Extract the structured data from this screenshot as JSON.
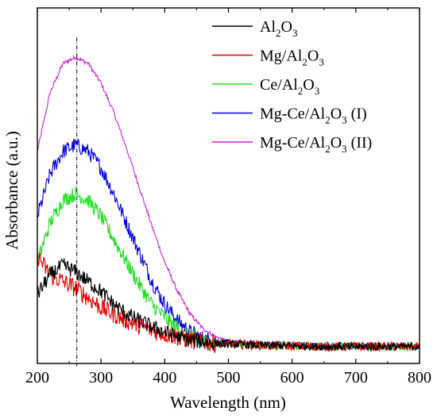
{
  "chart_data": {
    "type": "line",
    "xlabel": "Wavelength (nm)",
    "ylabel": "Absorbance (a.u.)",
    "xlim": [
      200,
      800
    ],
    "ylim": [
      0,
      1
    ],
    "x_ticks": [
      200,
      300,
      400,
      500,
      600,
      700,
      800
    ],
    "y_ticks_labeled": false,
    "grid": false,
    "legend_position": "top-right",
    "reference_line": {
      "x": 262,
      "style": "dash-dot"
    },
    "series": [
      {
        "name": "Al2O3",
        "legend": [
          "Al",
          "2",
          "O",
          "3",
          ""
        ],
        "color": "#000000",
        "x": [
          200,
          220,
          240,
          260,
          280,
          300,
          320,
          340,
          360,
          380,
          400,
          420,
          440,
          460,
          480,
          500,
          550,
          600,
          650,
          700,
          750,
          800
        ],
        "y": [
          0.18,
          0.24,
          0.27,
          0.25,
          0.22,
          0.19,
          0.15,
          0.12,
          0.1,
          0.08,
          0.065,
          0.05,
          0.04,
          0.035,
          0.03,
          0.028,
          0.024,
          0.022,
          0.02,
          0.02,
          0.02,
          0.02
        ],
        "noise": 0.015
      },
      {
        "name": "Mg/Al2O3",
        "legend": [
          "Mg/Al",
          "2",
          "O",
          "3",
          ""
        ],
        "color": "#e00000",
        "x": [
          200,
          220,
          240,
          260,
          280,
          300,
          320,
          340,
          360,
          380,
          400,
          420,
          440,
          460,
          480,
          500,
          550,
          600,
          650,
          700,
          750,
          800
        ],
        "y": [
          0.3,
          0.24,
          0.22,
          0.2,
          0.17,
          0.14,
          0.12,
          0.1,
          0.085,
          0.07,
          0.06,
          0.05,
          0.04,
          0.035,
          0.03,
          0.028,
          0.024,
          0.022,
          0.02,
          0.02,
          0.02,
          0.02
        ],
        "noise": 0.018
      },
      {
        "name": "Ce/Al2O3",
        "legend": [
          "Ce/Al",
          "2",
          "O",
          "3",
          ""
        ],
        "color": "#22dd22",
        "x": [
          200,
          220,
          240,
          260,
          280,
          300,
          320,
          340,
          360,
          380,
          400,
          420,
          440,
          460,
          480,
          500,
          550,
          600,
          650,
          700,
          750,
          800
        ],
        "y": [
          0.28,
          0.4,
          0.47,
          0.49,
          0.47,
          0.42,
          0.35,
          0.28,
          0.21,
          0.15,
          0.11,
          0.075,
          0.05,
          0.035,
          0.03,
          0.028,
          0.024,
          0.022,
          0.02,
          0.02,
          0.02,
          0.02
        ],
        "noise": 0.015
      },
      {
        "name": "Mg-Ce/Al2O3 (I)",
        "legend": [
          "Mg-Ce/Al",
          "2",
          "O",
          "3",
          " (I)"
        ],
        "color": "#0000dd",
        "x": [
          200,
          220,
          240,
          260,
          280,
          300,
          320,
          340,
          360,
          380,
          400,
          420,
          440,
          460,
          480,
          500,
          550,
          600,
          650,
          700,
          750,
          800
        ],
        "y": [
          0.42,
          0.55,
          0.62,
          0.64,
          0.62,
          0.57,
          0.49,
          0.4,
          0.31,
          0.22,
          0.15,
          0.1,
          0.065,
          0.045,
          0.035,
          0.03,
          0.026,
          0.024,
          0.022,
          0.022,
          0.022,
          0.02
        ],
        "noise": 0.015
      },
      {
        "name": "Mg-Ce/Al2O3 (II)",
        "legend": [
          "Mg-Ce/Al",
          "2",
          "O",
          "3",
          " (II)"
        ],
        "color": "#cc22cc",
        "x": [
          200,
          220,
          240,
          260,
          280,
          300,
          320,
          340,
          360,
          380,
          400,
          420,
          440,
          460,
          480,
          500,
          550,
          600,
          650,
          700,
          750,
          800
        ],
        "y": [
          0.62,
          0.8,
          0.89,
          0.91,
          0.89,
          0.83,
          0.74,
          0.63,
          0.51,
          0.39,
          0.28,
          0.19,
          0.12,
          0.075,
          0.05,
          0.038,
          0.028,
          0.024,
          0.022,
          0.022,
          0.022,
          0.02
        ],
        "noise": 0.004
      }
    ]
  }
}
